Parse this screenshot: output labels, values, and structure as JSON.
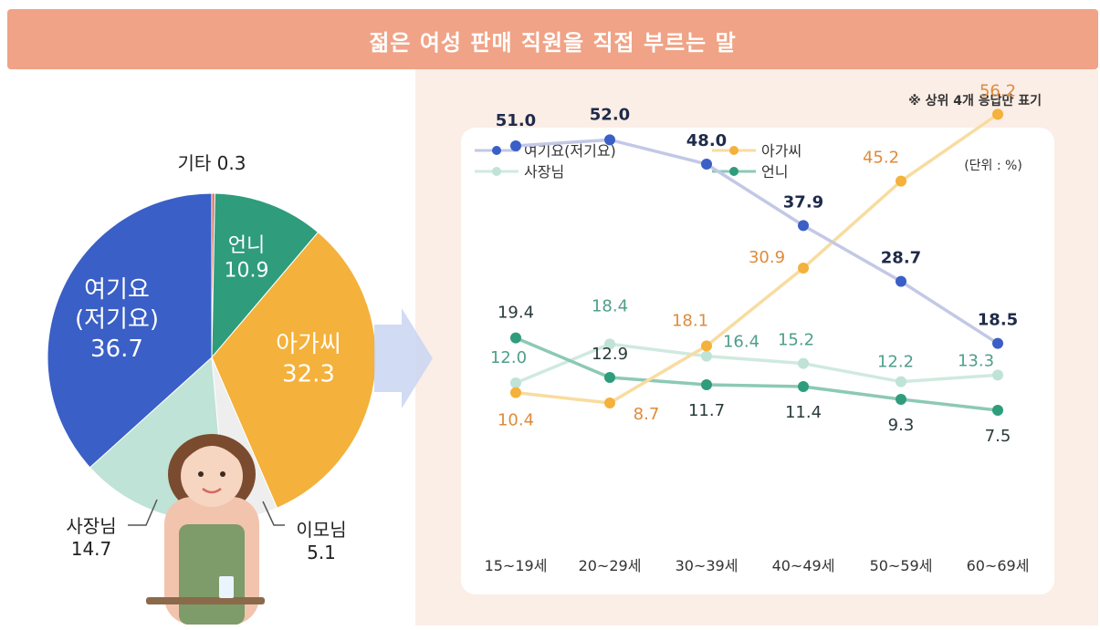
{
  "header": {
    "title": "젊은 여성 판매 직원을 직접 부르는 말"
  },
  "note": "※ 상위 4개 응답만 표기",
  "colors": {
    "yeogiyo": "#3a5fc6",
    "agassi": "#f4b13b",
    "sajangnim": "#bfe3d6",
    "eonni": "#2f9c7c",
    "imonim": "#eeeeee",
    "gita": "#e06b55"
  },
  "chart_data": [
    {
      "type": "pie",
      "slices": [
        {
          "key": "gita",
          "label": "기타",
          "value": 0.3
        },
        {
          "key": "eonni",
          "label": "언니",
          "value": 10.9
        },
        {
          "key": "agassi",
          "label": "아가씨",
          "value": 32.3
        },
        {
          "key": "imonim",
          "label": "이모님",
          "value": 5.1
        },
        {
          "key": "sajangnim",
          "label": "사장님",
          "value": 14.7
        },
        {
          "key": "yeogiyo",
          "label": "여기요\n(저기요)",
          "value": 36.7
        }
      ]
    },
    {
      "type": "line",
      "unit_label": "(단위 : %)",
      "categories": [
        "15~19세",
        "20~29세",
        "30~39세",
        "40~49세",
        "50~59세",
        "60~69세"
      ],
      "legend_position": "top",
      "series": [
        {
          "key": "yeogiyo",
          "name": "여기요(저기요)",
          "color": "#3a5fc6",
          "line_color": "#c3c8e6",
          "label_color": "#1f2b4a",
          "values": [
            51.0,
            52.0,
            48.0,
            37.9,
            28.7,
            18.5
          ]
        },
        {
          "key": "agassi",
          "name": "아가씨",
          "color": "#f4b13b",
          "line_color": "#f8dca0",
          "label_color": "#e08a3a",
          "values": [
            10.4,
            8.7,
            18.1,
            30.9,
            45.2,
            56.2
          ]
        },
        {
          "key": "sajangnim",
          "name": "사장님",
          "color": "#bfe3d6",
          "line_color": "#cfeade",
          "label_color": "#4e9e8a",
          "values": [
            12.0,
            18.4,
            16.4,
            15.2,
            12.2,
            13.3
          ]
        },
        {
          "key": "eonni",
          "name": "언니",
          "color": "#2f9c7c",
          "line_color": "#8cc9b5",
          "label_color": "#2a3a3a",
          "values": [
            19.4,
            12.9,
            11.7,
            11.4,
            9.3,
            7.5
          ]
        }
      ],
      "ylim": [
        0,
        60
      ]
    }
  ]
}
